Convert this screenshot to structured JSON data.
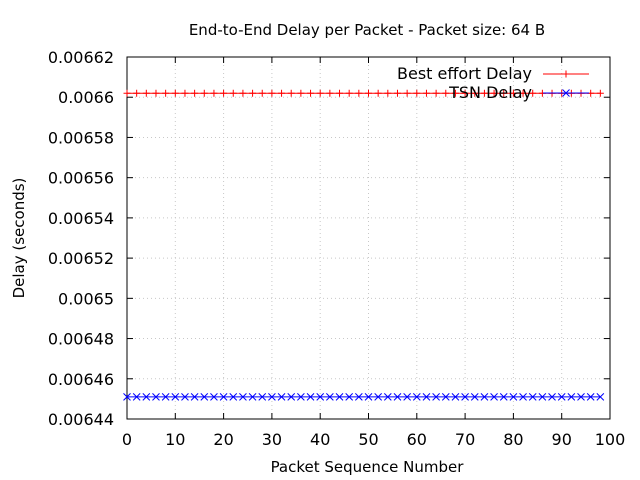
{
  "chart_data": {
    "type": "line",
    "title": "End-to-End Delay per Packet - Packet size: 64 B",
    "xlabel": "Packet Sequence Number",
    "ylabel": "Delay (seconds)",
    "xlim": [
      0,
      100
    ],
    "ylim": [
      0.00644,
      0.00662
    ],
    "xticks": [
      "0",
      "10",
      "20",
      "30",
      "40",
      "50",
      "60",
      "70",
      "80",
      "90",
      "100"
    ],
    "yticks": [
      "0.00644",
      "0.00646",
      "0.00648",
      "0.0065",
      "0.00652",
      "0.00654",
      "0.00656",
      "0.00658",
      "0.0066",
      "0.00662"
    ],
    "grid": true,
    "legend_position": "top-right",
    "x": [
      0,
      2,
      4,
      6,
      8,
      10,
      12,
      14,
      16,
      18,
      20,
      22,
      24,
      26,
      28,
      30,
      32,
      34,
      36,
      38,
      40,
      42,
      44,
      46,
      48,
      50,
      52,
      54,
      56,
      58,
      60,
      62,
      64,
      66,
      68,
      70,
      72,
      74,
      76,
      78,
      80,
      82,
      84,
      86,
      88,
      90,
      92,
      94,
      96,
      98
    ],
    "series": [
      {
        "name": "Best effort Delay",
        "color": "#ff0000",
        "marker": "plus",
        "values": [
          0.006602,
          0.006602,
          0.006602,
          0.006602,
          0.006602,
          0.006602,
          0.006602,
          0.006602,
          0.006602,
          0.006602,
          0.006602,
          0.006602,
          0.006602,
          0.006602,
          0.006602,
          0.006602,
          0.006602,
          0.006602,
          0.006602,
          0.006602,
          0.006602,
          0.006602,
          0.006602,
          0.006602,
          0.006602,
          0.006602,
          0.006602,
          0.006602,
          0.006602,
          0.006602,
          0.006602,
          0.006602,
          0.006602,
          0.006602,
          0.006602,
          0.006602,
          0.006602,
          0.006602,
          0.006602,
          0.006602,
          0.006602,
          0.006602,
          0.006602,
          0.006602,
          0.006602,
          0.006602,
          0.006602,
          0.006602,
          0.006602,
          0.006602
        ]
      },
      {
        "name": "TSN Delay",
        "color": "#0000ff",
        "marker": "cross",
        "values": [
          0.006451,
          0.006451,
          0.006451,
          0.006451,
          0.006451,
          0.006451,
          0.006451,
          0.006451,
          0.006451,
          0.006451,
          0.006451,
          0.006451,
          0.006451,
          0.006451,
          0.006451,
          0.006451,
          0.006451,
          0.006451,
          0.006451,
          0.006451,
          0.006451,
          0.006451,
          0.006451,
          0.006451,
          0.006451,
          0.006451,
          0.006451,
          0.006451,
          0.006451,
          0.006451,
          0.006451,
          0.006451,
          0.006451,
          0.006451,
          0.006451,
          0.006451,
          0.006451,
          0.006451,
          0.006451,
          0.006451,
          0.006451,
          0.006451,
          0.006451,
          0.006451,
          0.006451,
          0.006451,
          0.006451,
          0.006451,
          0.006451,
          0.006451
        ]
      }
    ]
  }
}
